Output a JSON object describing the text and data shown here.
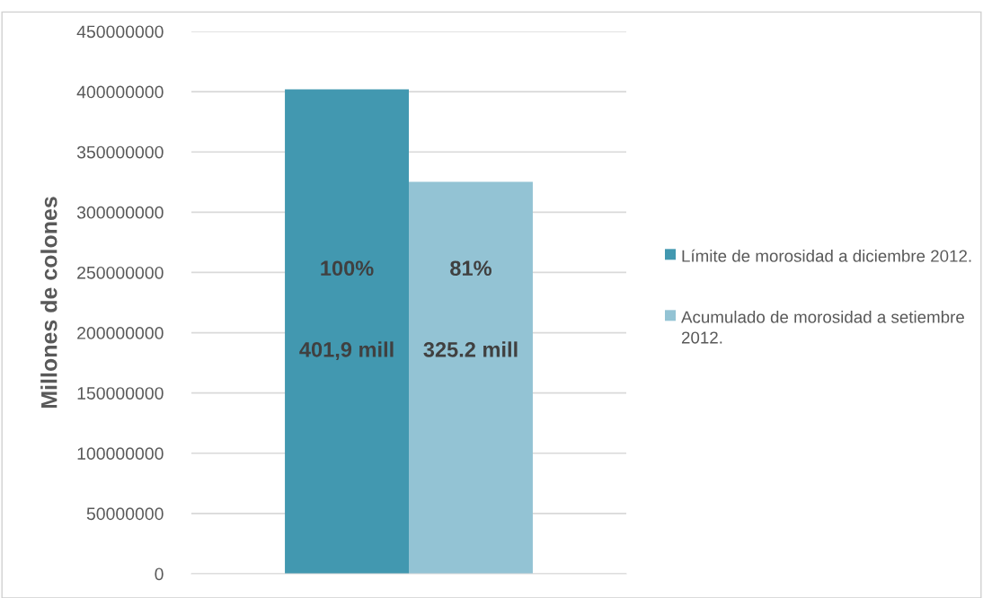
{
  "chart_data": {
    "type": "bar",
    "ylabel": "Millones de colones",
    "categories": [
      null
    ],
    "series": [
      {
        "name": "Límite de morosidad a diciembre 2012.",
        "color": "#4298b0",
        "values": [
          401900000
        ]
      },
      {
        "name": "Acumulado de morosidad a setiembre 2012.",
        "color": "#93c3d4",
        "values": [
          325200000
        ]
      }
    ],
    "annotations": [
      "100%",
      "401,9 mill",
      "81%",
      "325.2 mill"
    ],
    "ylim": [
      0,
      450000000
    ],
    "yticks": [
      0,
      50000000,
      100000000,
      150000000,
      200000000,
      250000000,
      300000000,
      350000000,
      400000000,
      450000000
    ],
    "grid": "y",
    "legend": "right"
  }
}
